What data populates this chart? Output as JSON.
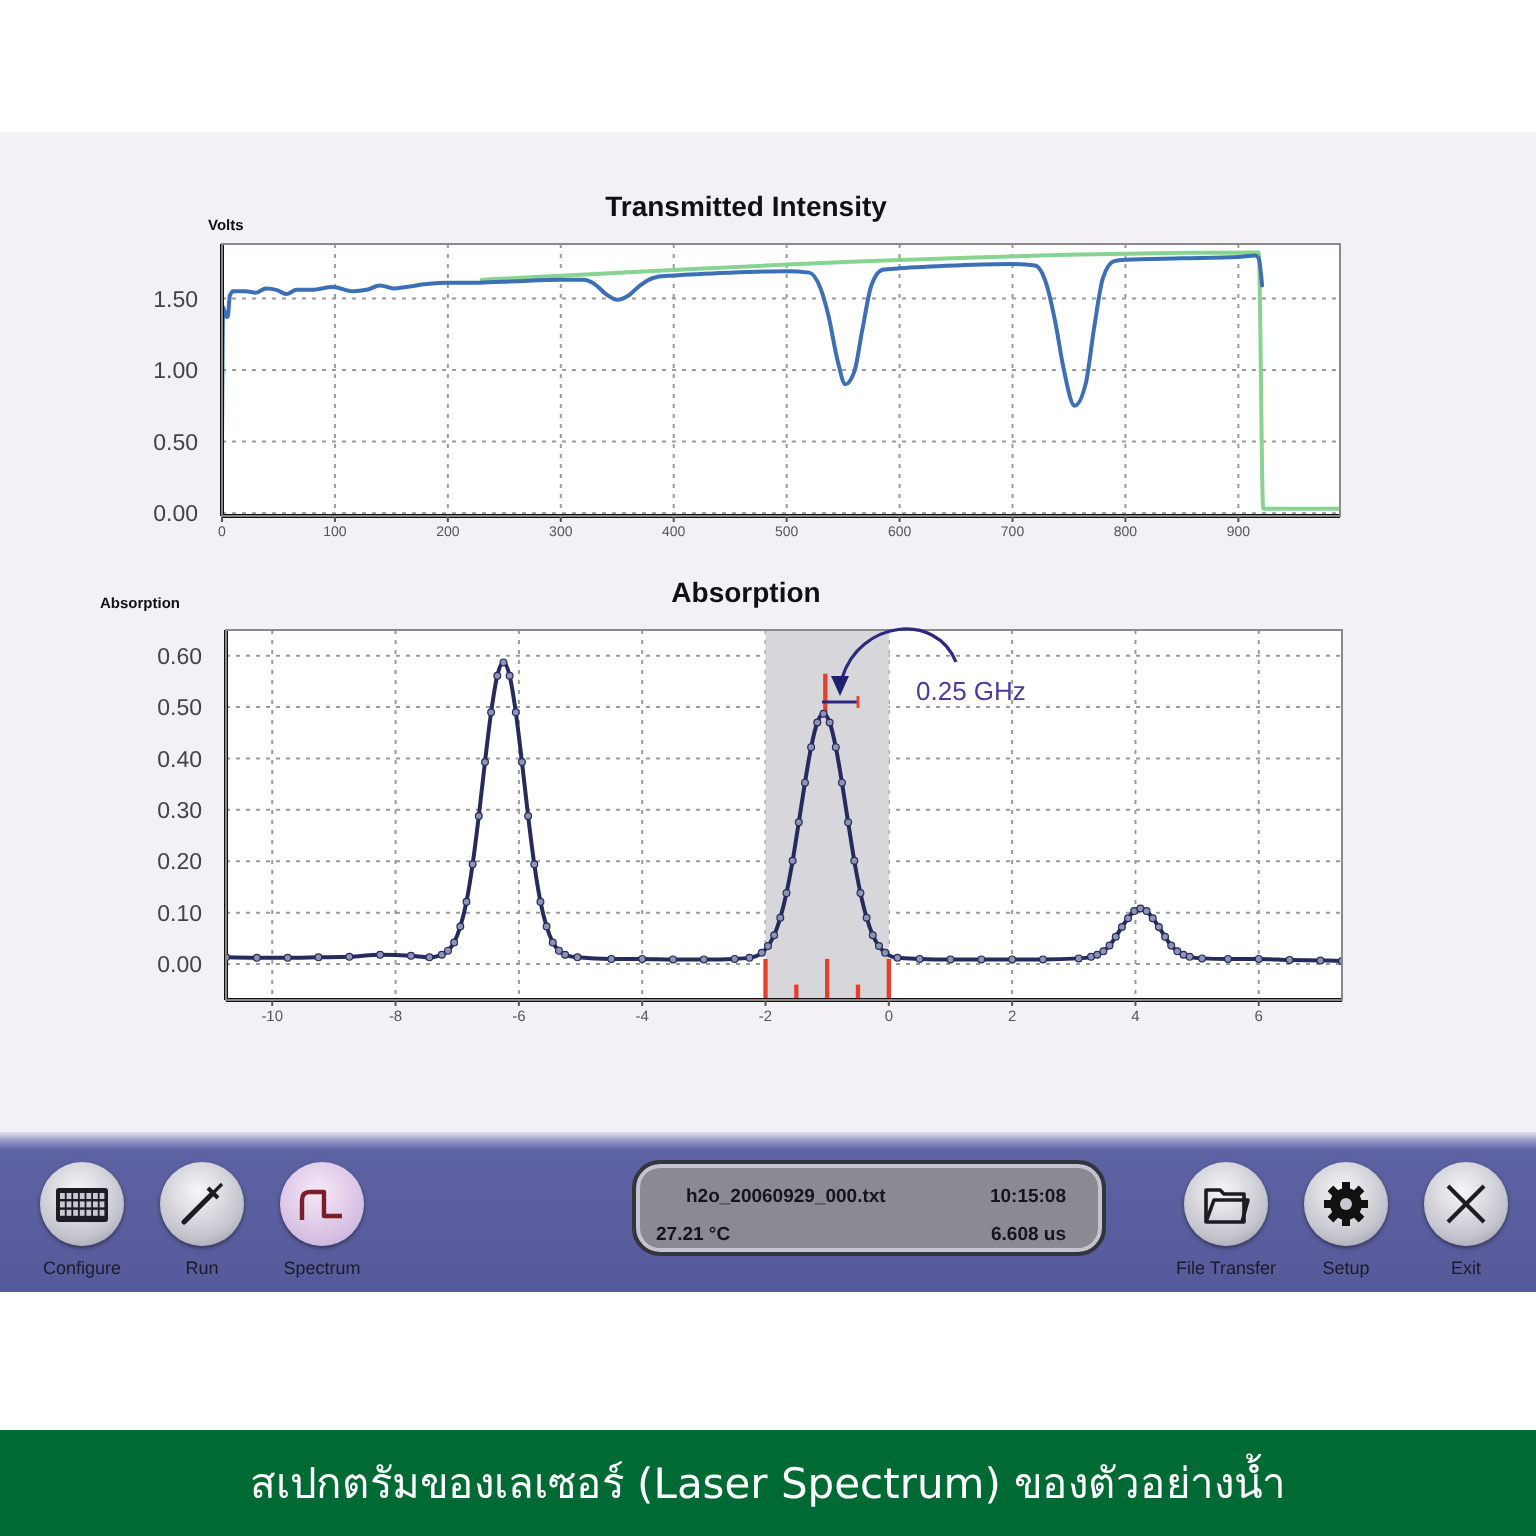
{
  "chart_data": [
    {
      "type": "line",
      "title": "Transmitted Intensity",
      "ylabel": "Volts",
      "xlim": [
        0,
        990
      ],
      "ylim": [
        -0.02,
        1.88
      ],
      "xticks": [
        0,
        100,
        200,
        300,
        400,
        500,
        600,
        700,
        800,
        900
      ],
      "yticks": [
        {
          "value": 0,
          "label": "0.00"
        },
        {
          "value": 0.5,
          "label": "0.50"
        },
        {
          "value": 1,
          "label": "1.00"
        },
        {
          "value": 1.5,
          "label": "1.50"
        }
      ],
      "grid": true,
      "series": [
        {
          "color": "#86d48f",
          "x": [
            230,
            918,
            922,
            990
          ],
          "values": [
            1.63,
            1.82,
            0.03,
            0.03
          ]
        },
        {
          "color": "#3d6fb6",
          "x": [
            0,
            1,
            3,
            5,
            7,
            10,
            21,
            30,
            39,
            48,
            57,
            66,
            80,
            98,
            116,
            128,
            140,
            152,
            163,
            181,
            199,
            228,
            260,
            300,
            320,
            330,
            340,
            350,
            360,
            370,
            385,
            400,
            450,
            500,
            520,
            530,
            537,
            545,
            552,
            560,
            567,
            575,
            585,
            600,
            650,
            700,
            720,
            730,
            738,
            745,
            755,
            765,
            772,
            780,
            790,
            800,
            850,
            900,
            915,
            918,
            921
          ],
          "values": [
            0.5,
            1.44,
            1.38,
            1.37,
            1.52,
            1.55,
            1.55,
            1.54,
            1.57,
            1.56,
            1.53,
            1.56,
            1.56,
            1.58,
            1.55,
            1.56,
            1.59,
            1.57,
            1.58,
            1.6,
            1.61,
            1.61,
            1.62,
            1.63,
            1.63,
            1.6,
            1.53,
            1.49,
            1.52,
            1.59,
            1.65,
            1.66,
            1.68,
            1.69,
            1.68,
            1.57,
            1.38,
            1.07,
            0.9,
            0.99,
            1.28,
            1.59,
            1.7,
            1.71,
            1.73,
            1.74,
            1.73,
            1.6,
            1.33,
            1.02,
            0.75,
            0.91,
            1.28,
            1.64,
            1.76,
            1.77,
            1.78,
            1.79,
            1.8,
            1.78,
            1.59
          ]
        }
      ]
    },
    {
      "type": "line",
      "title": "Absorption",
      "ylabel": "Absorption",
      "xlim": [
        -10.75,
        7.35
      ],
      "ylim": [
        -0.07,
        0.65
      ],
      "xticks": [
        -10,
        -8,
        -6,
        -4,
        -2,
        0,
        2,
        4,
        6
      ],
      "yticks": [
        {
          "value": 0,
          "label": "0.00"
        },
        {
          "value": 0.1,
          "label": "0.10"
        },
        {
          "value": 0.2,
          "label": "0.20"
        },
        {
          "value": 0.3,
          "label": "0.30"
        },
        {
          "value": 0.4,
          "label": "0.40"
        },
        {
          "value": 0.5,
          "label": "0.50"
        },
        {
          "value": 0.6,
          "label": "0.60"
        }
      ],
      "grid": true,
      "marker": "circle",
      "bands": [
        {
          "axis": "x",
          "from": -2,
          "to": 0,
          "color": "#d7d7db"
        }
      ],
      "annotations": [
        "0.25 GHz"
      ],
      "series": [
        {
          "color": "#252b5c",
          "x": [
            -10.75,
            -10.25,
            -9.75,
            -9.25,
            -8.75,
            -8.25,
            -7.75,
            -7.45,
            -7.25,
            -7.15,
            -7.05,
            -6.95,
            -6.85,
            -6.75,
            -6.65,
            -6.55,
            -6.45,
            -6.35,
            -6.25,
            -6.15,
            -6.05,
            -5.95,
            -5.85,
            -5.75,
            -5.65,
            -5.55,
            -5.45,
            -5.35,
            -5.25,
            -5.05,
            -4.5,
            -4,
            -3.5,
            -3,
            -2.5,
            -2.26,
            -2.06,
            -1.96,
            -1.86,
            -1.76,
            -1.66,
            -1.56,
            -1.46,
            -1.36,
            -1.26,
            -1.16,
            -1.06,
            -0.96,
            -0.86,
            -0.76,
            -0.66,
            -0.56,
            -0.46,
            -0.36,
            -0.26,
            -0.16,
            -0.06,
            0.14,
            0.5,
            1,
            1.5,
            2,
            2.5,
            3.08,
            3.28,
            3.38,
            3.48,
            3.58,
            3.68,
            3.78,
            3.88,
            3.98,
            4.08,
            4.18,
            4.28,
            4.38,
            4.48,
            4.58,
            4.68,
            4.78,
            4.88,
            5.08,
            5.5,
            6,
            6.5,
            7,
            7.35
          ],
          "values": [
            0.013,
            0.012,
            0.012,
            0.013,
            0.014,
            0.018,
            0.016,
            0.013,
            0.018,
            0.026,
            0.042,
            0.073,
            0.121,
            0.194,
            0.288,
            0.393,
            0.49,
            0.561,
            0.587,
            0.561,
            0.49,
            0.393,
            0.288,
            0.194,
            0.121,
            0.073,
            0.042,
            0.026,
            0.018,
            0.013,
            0.01,
            0.01,
            0.009,
            0.009,
            0.01,
            0.012,
            0.022,
            0.035,
            0.056,
            0.09,
            0.138,
            0.201,
            0.276,
            0.353,
            0.422,
            0.47,
            0.487,
            0.47,
            0.422,
            0.353,
            0.276,
            0.201,
            0.138,
            0.09,
            0.056,
            0.035,
            0.022,
            0.012,
            0.01,
            0.009,
            0.009,
            0.009,
            0.009,
            0.011,
            0.014,
            0.018,
            0.025,
            0.036,
            0.053,
            0.072,
            0.089,
            0.103,
            0.108,
            0.103,
            0.089,
            0.072,
            0.053,
            0.036,
            0.025,
            0.018,
            0.014,
            0.011,
            0.01,
            0.01,
            0.008,
            0.007,
            0.006
          ]
        },
        {
          "type": "bar",
          "color": "#e5402c",
          "x": [
            -2,
            -1.5,
            -1.03,
            -1,
            -0.5,
            0
          ],
          "base": [
            -0.07,
            -0.07,
            0.49,
            -0.07,
            -0.07,
            -0.07
          ],
          "values": [
            0.08,
            0.03,
            0.075,
            0.08,
            0.03,
            0.08
          ]
        }
      ]
    },
    {
      "type": "other",
      "annotations": [
        "h2o_20060929_000.txt",
        "10:15:08",
        "27.21 °C",
        "6.608 us",
        "Configure",
        "Run",
        "Spectrum",
        "File Transfer",
        "Setup",
        "Exit"
      ]
    },
    {
      "type": "other",
      "title": "สเปกตรัมของเลเซอร์ (Laser Spectrum) ของตัวอย่างน้ำ"
    }
  ]
}
